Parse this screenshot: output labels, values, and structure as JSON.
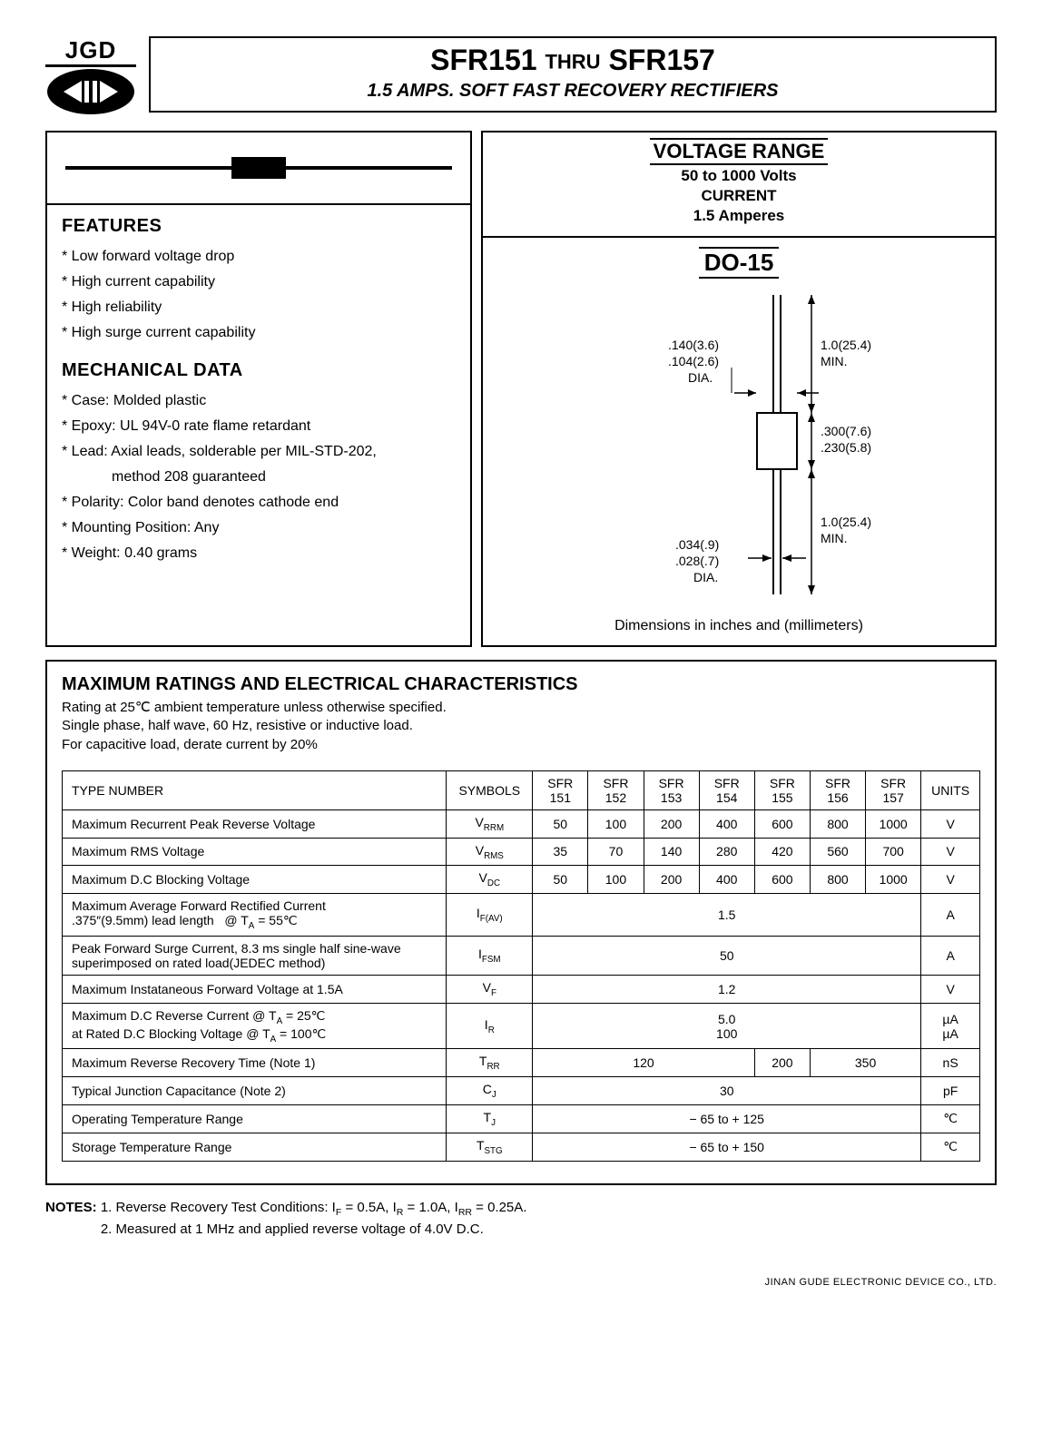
{
  "logo_text": "JGD",
  "title": {
    "left": "SFR151",
    "thru": "THRU",
    "right": "SFR157",
    "subtitle": "1.5 AMPS.  SOFT FAST RECOVERY RECTIFIERS"
  },
  "voltage_range": {
    "title": "VOLTAGE RANGE",
    "l1": "50 to 1000 Volts",
    "l2": "CURRENT",
    "l3": "1.5 Amperes"
  },
  "features": {
    "heading": "FEATURES",
    "items": [
      "Low forward voltage drop",
      "High current capability",
      "High reliability",
      "High surge current capability"
    ]
  },
  "mechdata": {
    "heading": "MECHANICAL DATA",
    "items": [
      "Case: Molded plastic",
      "Epoxy: UL 94V-0 rate flame retardant",
      "Lead: Axial leads, solderable per MIL-STD-202,",
      "method 208 guaranteed",
      "Polarity: Color band denotes cathode end",
      "Mounting Position: Any",
      "Weight: 0.40 grams"
    ],
    "indent_indices": [
      3
    ]
  },
  "do15": {
    "title": "DO-15",
    "dim1_top": ".140(3.6)",
    "dim1_bot": ".104(2.6)",
    "dia": "DIA.",
    "lead_top": "1.0(25.4)",
    "lead_bot": "MIN.",
    "body_top": ".300(7.6)",
    "body_bot": ".230(5.8)",
    "lead2_top": "1.0(25.4)",
    "lead2_bot": "MIN.",
    "wire_top": ".034(.9)",
    "wire_bot": ".028(.7)",
    "footer": "Dimensions in inches and (millimeters)"
  },
  "ratings": {
    "heading": "MAXIMUM RATINGS AND ELECTRICAL CHARACTERISTICS",
    "n1": "Rating at 25℃ ambient temperature unless otherwise specified.",
    "n2": "Single phase, half wave, 60 Hz, resistive or inductive load.",
    "n3": "For capacitive load, derate current by 20%"
  },
  "table": {
    "head": {
      "type": "TYPE NUMBER",
      "sym": "SYMBOLS",
      "cols": [
        "SFR 151",
        "SFR 152",
        "SFR 153",
        "SFR 154",
        "SFR 155",
        "SFR 156",
        "SFR 157"
      ],
      "units": "UNITS"
    },
    "rows": [
      {
        "p": "Maximum Recurrent Peak Reverse Voltage",
        "s": "V<sub>RRM</sub>",
        "v": [
          "50",
          "100",
          "200",
          "400",
          "600",
          "800",
          "1000"
        ],
        "u": "V"
      },
      {
        "p": "Maximum RMS Voltage",
        "s": "V<sub>RMS</sub>",
        "v": [
          "35",
          "70",
          "140",
          "280",
          "420",
          "560",
          "700"
        ],
        "u": "V"
      },
      {
        "p": "Maximum D.C Blocking Voltage",
        "s": "V<sub>DC</sub>",
        "v": [
          "50",
          "100",
          "200",
          "400",
          "600",
          "800",
          "1000"
        ],
        "u": "V"
      },
      {
        "p": "Maximum Average Forward Rectified Current<br>.375″(9.5mm) lead length&nbsp;&nbsp;&nbsp;@ T<sub>A</sub> = 55℃",
        "s": "I<sub>F(AV)</sub>",
        "span": "1.5",
        "u": "A"
      },
      {
        "p": "Peak Forward Surge Current, 8.3 ms single half sine-wave<br>superimposed on rated load(JEDEC method)",
        "s": "I<sub>FSM</sub>",
        "span": "50",
        "u": "A"
      },
      {
        "p": "Maximum Instataneous Forward Voltage at 1.5A",
        "s": "V<sub>F</sub>",
        "span": "1.2",
        "u": "V"
      },
      {
        "p": "Maximum D.C Reverse Current @ T<sub>A</sub> = 25℃<br>at Rated D.C Blocking Voltage @ T<sub>A</sub> = 100℃",
        "s": "I<sub>R</sub>",
        "span": "5.0<br>100",
        "u": "µA<br>µA"
      },
      {
        "p": "Maximum Reverse Recovery Time (Note 1)",
        "s": "T<sub>RR</sub>",
        "groups": [
          {
            "c": 4,
            "v": "120"
          },
          {
            "c": 1,
            "v": "200"
          },
          {
            "c": 2,
            "v": "350"
          }
        ],
        "u": "nS"
      },
      {
        "p": "Typical Junction Capacitance (Note 2)",
        "s": "C<sub>J</sub>",
        "span": "30",
        "u": "pF"
      },
      {
        "p": "Operating Temperature Range",
        "s": "T<sub>J</sub>",
        "span": "− 65 to + 125",
        "u": "℃"
      },
      {
        "p": "Storage Temperature Range",
        "s": "T<sub>STG</sub>",
        "span": "− 65 to + 150",
        "u": "℃"
      }
    ]
  },
  "notes": {
    "label": "NOTES:",
    "n1": "1. Reverse Recovery Test Conditions: I<sub>F</sub> = 0.5A, I<sub>R</sub> = 1.0A, I<sub>RR</sub> = 0.25A.",
    "n2": "2. Measured at 1 MHz and applied reverse voltage of 4.0V D.C."
  },
  "footer": "JINAN GUDE ELECTRONIC DEVICE CO., LTD."
}
